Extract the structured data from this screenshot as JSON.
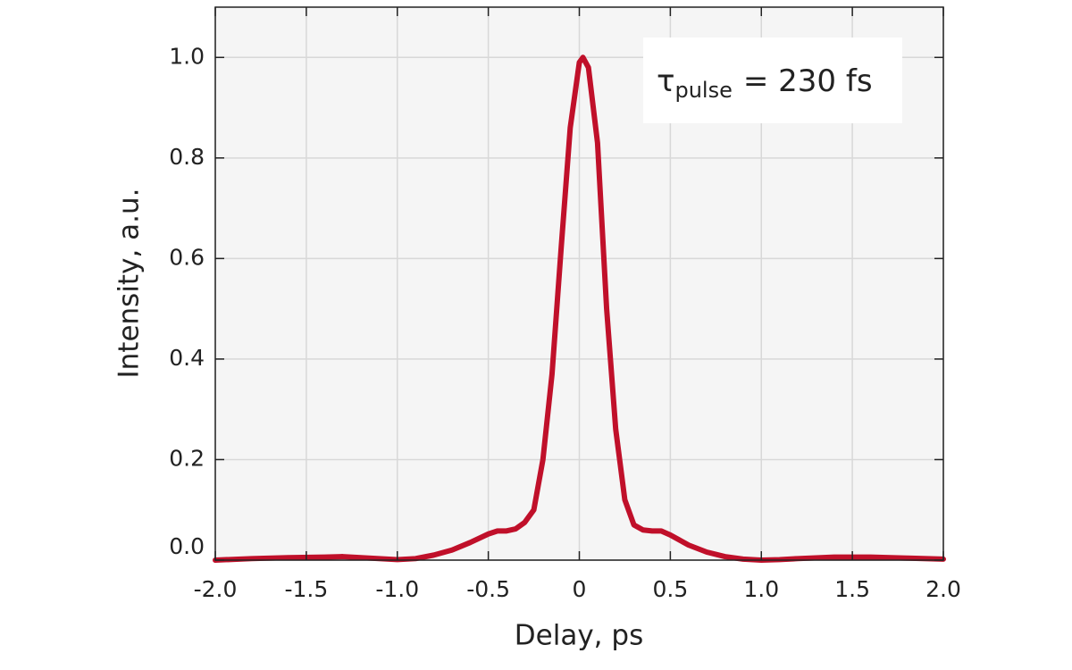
{
  "chart_data": {
    "type": "line",
    "x_label": "Delay, ps",
    "y_label": "Intensity, a.u.",
    "annotation": {
      "symbol": "τ",
      "subscript": "pulse",
      "text": "= 230 fs"
    },
    "x": [
      -2.0,
      -1.8,
      -1.6,
      -1.4,
      -1.3,
      -1.2,
      -1.0,
      -0.9,
      -0.8,
      -0.7,
      -0.6,
      -0.5,
      -0.45,
      -0.4,
      -0.35,
      -0.3,
      -0.25,
      -0.2,
      -0.15,
      -0.1,
      -0.05,
      0,
      0.02,
      0.05,
      0.1,
      0.15,
      0.2,
      0.25,
      0.3,
      0.35,
      0.4,
      0.45,
      0.5,
      0.6,
      0.7,
      0.8,
      0.9,
      1.0,
      1.1,
      1.2,
      1.4,
      1.6,
      1.8,
      2.0
    ],
    "series": [
      {
        "color": "#c0102a",
        "values": [
          0.0,
          0.003,
          0.005,
          0.006,
          0.007,
          0.005,
          0.001,
          0.003,
          0.01,
          0.02,
          0.035,
          0.052,
          0.058,
          0.058,
          0.062,
          0.075,
          0.1,
          0.2,
          0.37,
          0.62,
          0.86,
          0.99,
          1.0,
          0.98,
          0.83,
          0.5,
          0.26,
          0.12,
          0.07,
          0.06,
          0.058,
          0.058,
          0.05,
          0.03,
          0.016,
          0.007,
          0.002,
          0.0,
          0.001,
          0.003,
          0.006,
          0.006,
          0.004,
          0.002
        ]
      }
    ],
    "xlim": [
      -2.0,
      2.0
    ],
    "xticks": [
      {
        "value": -2.0,
        "label": "-2.0"
      },
      -1.5,
      {
        "value": -1.0,
        "label": "-1.0"
      },
      -0.5,
      0,
      0.5,
      {
        "value": 1.0,
        "label": "1.0"
      },
      1.5,
      {
        "value": 2.0,
        "label": "2.0"
      }
    ],
    "ylim": [
      0,
      1.1
    ],
    "yticks": [
      {
        "value": 0,
        "label": "0.0"
      },
      0.2,
      0.4,
      0.6,
      0.8,
      {
        "value": 1.0,
        "label": "1.0"
      }
    ],
    "grid": true
  }
}
